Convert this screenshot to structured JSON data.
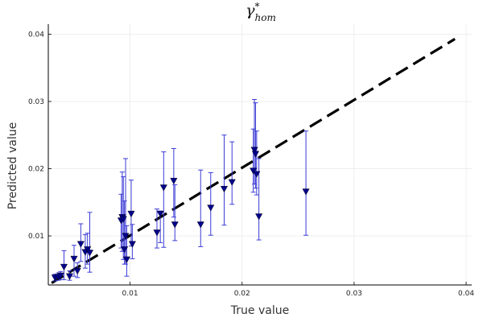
{
  "chart_data": {
    "type": "scatter",
    "title": "γ*hom",
    "xlabel": "True value",
    "ylabel": "Predicted value",
    "xlim": [
      0.0027,
      0.0405
    ],
    "ylim": [
      0.0027,
      0.0415
    ],
    "x_ticks": [
      "0.01",
      "0.02",
      "0.03",
      "0.04"
    ],
    "y_ticks": [
      "0.01",
      "0.02",
      "0.03",
      "0.04"
    ],
    "grid": true,
    "legend": "none",
    "reference_line": {
      "style": "dashed",
      "color": "#000000",
      "from": [
        0.003,
        0.003
      ],
      "to": [
        0.039,
        0.0393
      ]
    },
    "series": [
      {
        "marker": "down-triangle",
        "color": "#00008b",
        "error_color": "#3b3bd6",
        "points": [
          {
            "x": 0.0033,
            "y": 0.0038,
            "lo": 0.0033,
            "hi": 0.0043
          },
          {
            "x": 0.0036,
            "y": 0.0039,
            "lo": 0.0034,
            "hi": 0.0045
          },
          {
            "x": 0.0038,
            "y": 0.0041,
            "lo": 0.0035,
            "hi": 0.0047
          },
          {
            "x": 0.0041,
            "y": 0.0054,
            "lo": 0.0035,
            "hi": 0.0078
          },
          {
            "x": 0.0046,
            "y": 0.004,
            "lo": 0.0034,
            "hi": 0.0048
          },
          {
            "x": 0.005,
            "y": 0.0066,
            "lo": 0.004,
            "hi": 0.0086
          },
          {
            "x": 0.0053,
            "y": 0.0048,
            "lo": 0.0038,
            "hi": 0.006
          },
          {
            "x": 0.0056,
            "y": 0.0088,
            "lo": 0.0062,
            "hi": 0.0118
          },
          {
            "x": 0.006,
            "y": 0.0076,
            "lo": 0.0052,
            "hi": 0.0102
          },
          {
            "x": 0.0062,
            "y": 0.008,
            "lo": 0.0058,
            "hi": 0.0104
          },
          {
            "x": 0.0064,
            "y": 0.0075,
            "lo": 0.0046,
            "hi": 0.0135
          },
          {
            "x": 0.0092,
            "y": 0.0123,
            "lo": 0.0082,
            "hi": 0.0162
          },
          {
            "x": 0.0093,
            "y": 0.0128,
            "lo": 0.0077,
            "hi": 0.0195
          },
          {
            "x": 0.0094,
            "y": 0.0125,
            "lo": 0.0065,
            "hi": 0.0188
          },
          {
            "x": 0.0095,
            "y": 0.008,
            "lo": 0.0058,
            "hi": 0.0152
          },
          {
            "x": 0.0096,
            "y": 0.01,
            "lo": 0.0058,
            "hi": 0.0215
          },
          {
            "x": 0.0097,
            "y": 0.0065,
            "lo": 0.004,
            "hi": 0.0115
          },
          {
            "x": 0.0101,
            "y": 0.0133,
            "lo": 0.0085,
            "hi": 0.0183
          },
          {
            "x": 0.0102,
            "y": 0.0088,
            "lo": 0.0066,
            "hi": 0.0117
          },
          {
            "x": 0.0124,
            "y": 0.0105,
            "lo": 0.0082,
            "hi": 0.014
          },
          {
            "x": 0.0127,
            "y": 0.0133,
            "lo": 0.009,
            "hi": 0.0137
          },
          {
            "x": 0.013,
            "y": 0.0172,
            "lo": 0.0083,
            "hi": 0.0225
          },
          {
            "x": 0.0139,
            "y": 0.0182,
            "lo": 0.0128,
            "hi": 0.023
          },
          {
            "x": 0.014,
            "y": 0.0117,
            "lo": 0.0093,
            "hi": 0.0176
          },
          {
            "x": 0.0163,
            "y": 0.0117,
            "lo": 0.0084,
            "hi": 0.0198
          },
          {
            "x": 0.0172,
            "y": 0.0142,
            "lo": 0.0101,
            "hi": 0.0194
          },
          {
            "x": 0.0184,
            "y": 0.017,
            "lo": 0.0116,
            "hi": 0.025
          },
          {
            "x": 0.0191,
            "y": 0.018,
            "lo": 0.0147,
            "hi": 0.024
          },
          {
            "x": 0.021,
            "y": 0.0197,
            "lo": 0.0165,
            "hi": 0.0259
          },
          {
            "x": 0.0211,
            "y": 0.0228,
            "lo": 0.0177,
            "hi": 0.0303
          },
          {
            "x": 0.0212,
            "y": 0.0222,
            "lo": 0.0171,
            "hi": 0.0298
          },
          {
            "x": 0.0213,
            "y": 0.0192,
            "lo": 0.0161,
            "hi": 0.0256
          },
          {
            "x": 0.0215,
            "y": 0.0129,
            "lo": 0.0094,
            "hi": 0.0215
          },
          {
            "x": 0.0257,
            "y": 0.0166,
            "lo": 0.0101,
            "hi": 0.0256
          }
        ]
      }
    ]
  }
}
